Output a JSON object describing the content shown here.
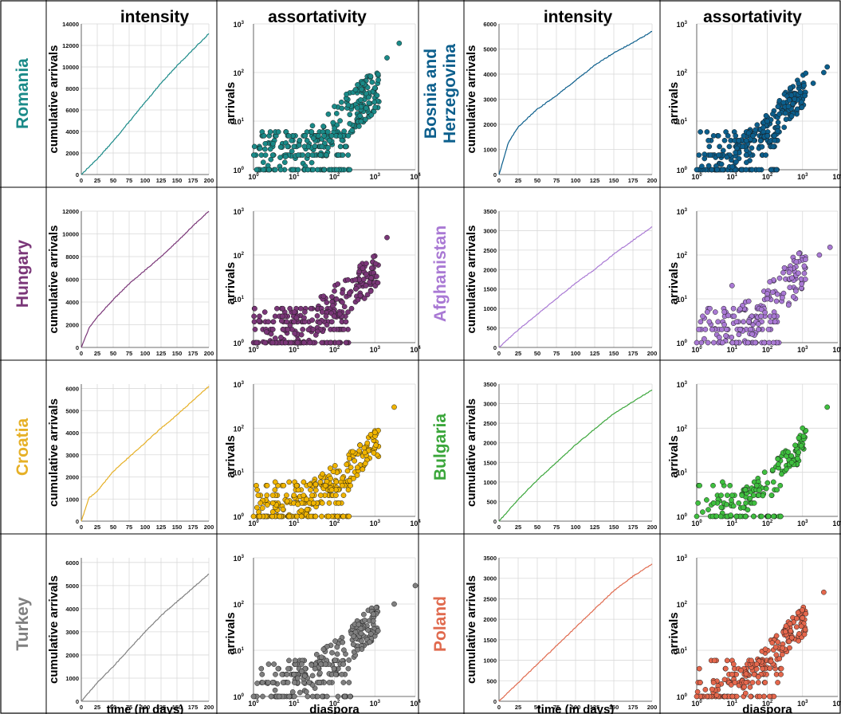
{
  "headers": {
    "intensity": "intensity",
    "assortativity": "assortativity"
  },
  "axis_labels": {
    "cumulative_arrivals": "cumulative arrivals",
    "arrivals": "arrivals",
    "time": "time (in days)",
    "diaspora": "diaspora"
  },
  "chart_data": [
    {
      "type": "line",
      "country": "Romania",
      "color": "#1a8a88",
      "title": "intensity",
      "xlabel": "",
      "ylabel": "cumulative arrivals",
      "x": [
        0,
        25,
        50,
        75,
        100,
        125,
        150,
        175,
        200
      ],
      "y": [
        0,
        1450,
        3100,
        4900,
        6700,
        8500,
        10100,
        11600,
        13100
      ],
      "xticks": [
        0,
        25,
        50,
        75,
        100,
        125,
        150,
        175,
        200
      ],
      "yticks": [
        0,
        2000,
        4000,
        6000,
        8000,
        10000,
        12000,
        14000
      ],
      "ylim": [
        0,
        14000
      ],
      "xlim": [
        0,
        200
      ],
      "grid": true
    },
    {
      "type": "scatter",
      "country": "Romania",
      "color": "#1a8a88",
      "title": "assortativity",
      "xlabel": "",
      "ylabel": "arrivals",
      "x_range": [
        1,
        10000
      ],
      "y_range": [
        1,
        1000
      ],
      "x_log": true,
      "y_log": true,
      "points": [
        [
          1.2,
          1
        ],
        [
          3,
          2
        ],
        [
          10,
          3
        ],
        [
          40,
          5
        ],
        [
          100,
          20
        ],
        [
          500,
          60
        ],
        [
          2000,
          200
        ],
        [
          4000,
          400
        ]
      ],
      "dense": 320,
      "spread": 0.9,
      "rmax": 2.35,
      "grid": true
    },
    {
      "type": "line",
      "country": "Bosnia and Herzegovina",
      "color": "#0b5e8c",
      "title": "intensity",
      "xlabel": "",
      "ylabel": "cumulative arrivals",
      "x": [
        0,
        12,
        25,
        50,
        75,
        100,
        125,
        150,
        175,
        200
      ],
      "y": [
        0,
        1250,
        1900,
        2600,
        3150,
        3750,
        4350,
        4850,
        5250,
        5700
      ],
      "xticks": [
        0,
        25,
        50,
        75,
        100,
        125,
        150,
        175,
        200
      ],
      "yticks": [
        0,
        1000,
        2000,
        3000,
        4000,
        5000,
        6000
      ],
      "ylim": [
        0,
        6000
      ],
      "xlim": [
        0,
        200
      ],
      "grid": true
    },
    {
      "type": "scatter",
      "country": "Bosnia and Herzegovina",
      "color": "#0b5e8c",
      "title": "assortativity",
      "xlabel": "",
      "ylabel": "arrivals",
      "x_range": [
        1,
        10000
      ],
      "y_range": [
        1,
        1000
      ],
      "x_log": true,
      "y_log": true,
      "points": [
        [
          1,
          1
        ],
        [
          3,
          5
        ],
        [
          20,
          3
        ],
        [
          100,
          10
        ],
        [
          400,
          20
        ],
        [
          2000,
          60
        ],
        [
          4000,
          100
        ],
        [
          5000,
          130
        ]
      ],
      "dense": 300,
      "spread": 0.7,
      "rmax": 2.1,
      "grid": true
    },
    {
      "type": "line",
      "country": "Hungary",
      "color": "#7a3678",
      "title": "intensity",
      "xlabel": "",
      "ylabel": "cumulative arrivals",
      "x": [
        0,
        12,
        25,
        50,
        75,
        100,
        125,
        150,
        175,
        200
      ],
      "y": [
        0,
        1700,
        2700,
        4200,
        5600,
        6800,
        8000,
        9300,
        10700,
        12000
      ],
      "xticks": [
        0,
        25,
        50,
        75,
        100,
        125,
        150,
        175,
        200
      ],
      "yticks": [
        0,
        2000,
        4000,
        6000,
        8000,
        10000,
        12000
      ],
      "ylim": [
        0,
        12000
      ],
      "xlim": [
        0,
        200
      ],
      "grid": true
    },
    {
      "type": "scatter",
      "country": "Hungary",
      "color": "#7a3678",
      "title": "assortativity",
      "xlabel": "",
      "ylabel": "arrivals",
      "x_range": [
        1,
        10000
      ],
      "y_range": [
        1,
        1000
      ],
      "x_log": true,
      "y_log": true,
      "points": [
        [
          1.2,
          1
        ],
        [
          3,
          2
        ],
        [
          10,
          3
        ],
        [
          50,
          5
        ],
        [
          100,
          15
        ],
        [
          500,
          50
        ],
        [
          2000,
          250
        ]
      ],
      "dense": 300,
      "spread": 0.85,
      "rmax": 2.4,
      "grid": true
    },
    {
      "type": "line",
      "country": "Afghanistan",
      "color": "#a979d4",
      "title": "intensity",
      "xlabel": "",
      "ylabel": "cumulative arrivals",
      "x": [
        0,
        25,
        50,
        75,
        100,
        125,
        150,
        175,
        200
      ],
      "y": [
        0,
        450,
        850,
        1250,
        1650,
        2000,
        2400,
        2750,
        3100
      ],
      "xticks": [
        0,
        25,
        50,
        75,
        100,
        125,
        150,
        175,
        200
      ],
      "yticks": [
        0,
        500,
        1000,
        1500,
        2000,
        2500,
        3000,
        3500
      ],
      "ylim": [
        0,
        3500
      ],
      "xlim": [
        0,
        200
      ],
      "grid": true
    },
    {
      "type": "scatter",
      "country": "Afghanistan",
      "color": "#a979d4",
      "title": "assortativity",
      "xlabel": "",
      "ylabel": "arrivals",
      "x_range": [
        1,
        10000
      ],
      "y_range": [
        1,
        1000
      ],
      "x_log": true,
      "y_log": true,
      "points": [
        [
          1,
          1
        ],
        [
          2,
          5
        ],
        [
          10,
          20
        ],
        [
          30,
          3
        ],
        [
          100,
          10
        ],
        [
          500,
          30
        ],
        [
          3000,
          100
        ],
        [
          6000,
          150
        ]
      ],
      "dense": 200,
      "spread": 1.0,
      "rmax": 2.2,
      "grid": true
    },
    {
      "type": "line",
      "country": "Croatia",
      "color": "#e6b026",
      "title": "intensity",
      "xlabel": "",
      "ylabel": "cumulative arrivals",
      "x": [
        0,
        12,
        25,
        50,
        75,
        100,
        125,
        150,
        175,
        200
      ],
      "y": [
        0,
        1050,
        1350,
        2250,
        2900,
        3550,
        4200,
        4800,
        5450,
        6100
      ],
      "xticks": [
        0,
        25,
        50,
        75,
        100,
        125,
        150,
        175,
        200
      ],
      "yticks": [
        0,
        1000,
        2000,
        3000,
        4000,
        5000,
        6000
      ],
      "ylim": [
        0,
        6200
      ],
      "xlim": [
        0,
        200
      ],
      "grid": true
    },
    {
      "type": "scatter",
      "country": "Croatia",
      "color": "#f0b400",
      "title": "assortativity",
      "xlabel": "",
      "ylabel": "arrivals",
      "x_range": [
        1,
        10000
      ],
      "y_range": [
        1,
        1000
      ],
      "x_log": true,
      "y_log": true,
      "points": [
        [
          1,
          1
        ],
        [
          3,
          2
        ],
        [
          10,
          3
        ],
        [
          60,
          5
        ],
        [
          200,
          15
        ],
        [
          1000,
          80
        ],
        [
          3000,
          300
        ]
      ],
      "dense": 280,
      "spread": 0.7,
      "rmax": 2.3,
      "grid": true
    },
    {
      "type": "line",
      "country": "Bulgaria",
      "color": "#3aa63a",
      "title": "intensity",
      "xlabel": "",
      "ylabel": "cumulative arrivals",
      "x": [
        0,
        25,
        50,
        75,
        100,
        125,
        150,
        175,
        200
      ],
      "y": [
        0,
        550,
        1050,
        1500,
        1950,
        2350,
        2750,
        3050,
        3350
      ],
      "xticks": [
        0,
        25,
        50,
        75,
        100,
        125,
        150,
        175,
        200
      ],
      "yticks": [
        0,
        500,
        1000,
        1500,
        2000,
        2500,
        3000,
        3500
      ],
      "ylim": [
        0,
        3500
      ],
      "xlim": [
        0,
        200
      ],
      "grid": true
    },
    {
      "type": "scatter",
      "country": "Bulgaria",
      "color": "#3fbf3f",
      "title": "assortativity",
      "xlabel": "",
      "ylabel": "arrivals",
      "x_range": [
        1,
        10000
      ],
      "y_range": [
        1,
        1000
      ],
      "x_log": true,
      "y_log": true,
      "points": [
        [
          1,
          1
        ],
        [
          3,
          2
        ],
        [
          10,
          3
        ],
        [
          50,
          5
        ],
        [
          200,
          20
        ],
        [
          1000,
          100
        ],
        [
          5000,
          300
        ]
      ],
      "dense": 180,
      "spread": 0.6,
      "rmax": 2.4,
      "grid": true
    },
    {
      "type": "line",
      "country": "Turkey",
      "color": "#808080",
      "title": "intensity",
      "xlabel": "time (in days)",
      "ylabel": "cumulative arrivals",
      "x": [
        0,
        25,
        50,
        75,
        100,
        125,
        150,
        175,
        200
      ],
      "y": [
        0,
        800,
        1500,
        2250,
        3000,
        3700,
        4300,
        4900,
        5500
      ],
      "xticks": [
        0,
        25,
        50,
        75,
        100,
        125,
        150,
        175,
        200
      ],
      "yticks": [
        0,
        1000,
        2000,
        3000,
        4000,
        5000,
        6000
      ],
      "ylim": [
        0,
        6200
      ],
      "xlim": [
        0,
        200
      ],
      "grid": true
    },
    {
      "type": "scatter",
      "country": "Turkey",
      "color": "#7f7f7f",
      "title": "assortativity",
      "xlabel": "diaspora",
      "ylabel": "arrivals",
      "x_range": [
        1,
        10000
      ],
      "y_range": [
        1,
        1000
      ],
      "x_log": true,
      "y_log": true,
      "points": [
        [
          1,
          1
        ],
        [
          3,
          2
        ],
        [
          10,
          3
        ],
        [
          60,
          5
        ],
        [
          300,
          20
        ],
        [
          3000,
          100
        ],
        [
          10000,
          250
        ]
      ],
      "dense": 260,
      "spread": 0.75,
      "rmax": 2.4,
      "grid": true
    },
    {
      "type": "line",
      "country": "Poland",
      "color": "#e06a4e",
      "title": "intensity",
      "xlabel": "time (in days)",
      "ylabel": "cumulative arrivals",
      "x": [
        0,
        25,
        50,
        75,
        100,
        125,
        150,
        175,
        200
      ],
      "y": [
        0,
        450,
        900,
        1350,
        1800,
        2250,
        2700,
        3050,
        3350
      ],
      "xticks": [
        0,
        25,
        50,
        75,
        100,
        125,
        150,
        175,
        200
      ],
      "yticks": [
        0,
        500,
        1000,
        1500,
        2000,
        2500,
        3000,
        3500
      ],
      "ylim": [
        0,
        3500
      ],
      "xlim": [
        0,
        200
      ],
      "grid": true
    },
    {
      "type": "scatter",
      "country": "Poland",
      "color": "#e5674c",
      "title": "assortativity",
      "xlabel": "diaspora",
      "ylabel": "arrivals",
      "x_range": [
        1,
        10000
      ],
      "y_range": [
        1,
        1000
      ],
      "x_log": true,
      "y_log": true,
      "points": [
        [
          1,
          1
        ],
        [
          3,
          2
        ],
        [
          10,
          3
        ],
        [
          50,
          5
        ],
        [
          200,
          15
        ],
        [
          1000,
          50
        ],
        [
          4000,
          180
        ]
      ],
      "dense": 230,
      "spread": 0.65,
      "rmax": 2.3,
      "grid": true
    }
  ]
}
